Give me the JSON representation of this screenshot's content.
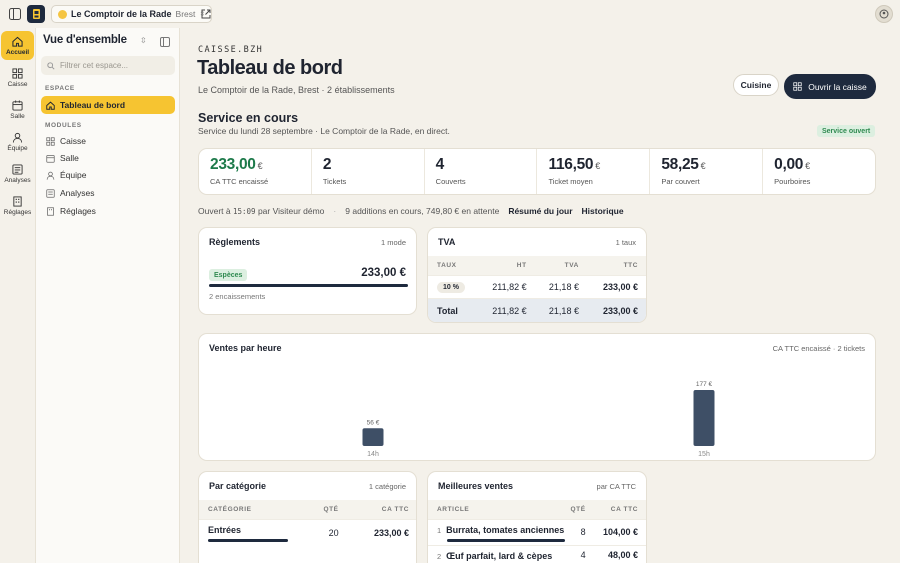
{
  "topbar": {
    "location_name": "Le Comptoir de la Rade",
    "location_city": "Brest"
  },
  "rail": {
    "items": [
      {
        "label": "Accueil",
        "icon": "home-icon",
        "active": true
      },
      {
        "label": "Caisse",
        "icon": "grid-icon"
      },
      {
        "label": "Salle",
        "icon": "calendar-icon"
      },
      {
        "label": "Équipe",
        "icon": "user-icon"
      },
      {
        "label": "Analyses",
        "icon": "chart-icon"
      },
      {
        "label": "Réglages",
        "icon": "building-icon"
      }
    ]
  },
  "sidebar": {
    "title": "Vue d'ensemble",
    "filter_placeholder": "Filtrer cet espace...",
    "section_space": "ESPACE",
    "dashboard_label": "Tableau de bord",
    "section_modules": "MODULES",
    "modules": [
      {
        "label": "Caisse",
        "icon": "grid-icon"
      },
      {
        "label": "Salle",
        "icon": "calendar-icon"
      },
      {
        "label": "Équipe",
        "icon": "user-icon"
      },
      {
        "label": "Analyses",
        "icon": "chart-icon"
      },
      {
        "label": "Réglages",
        "icon": "building-icon"
      }
    ]
  },
  "header": {
    "kicker": "CAISSE.BZH",
    "title": "Tableau de bord",
    "subtitle": "Le Comptoir de la Rade, Brest · 2 établissements",
    "btn_kitchen": "Cuisine",
    "btn_open_register": "Ouvrir la caisse"
  },
  "service": {
    "title": "Service en cours",
    "subtitle": "Service du lundi 28 septembre · Le Comptoir de la Rade, en direct.",
    "status_badge": "Service ouvert",
    "kpis": [
      {
        "value": "233,00",
        "unit": "€",
        "label": "CA TTC encaissé",
        "highlight": true
      },
      {
        "value": "2",
        "unit": "",
        "label": "Tickets"
      },
      {
        "value": "4",
        "unit": "",
        "label": "Couverts"
      },
      {
        "value": "116,50",
        "unit": "€",
        "label": "Ticket moyen"
      },
      {
        "value": "58,25",
        "unit": "€",
        "label": "Par couvert"
      },
      {
        "value": "0,00",
        "unit": "€",
        "label": "Pourboires"
      }
    ],
    "opened_prefix": "Ouvert à",
    "opened_time": "15:09",
    "opened_by": "par Visiteur démo",
    "pending": "9 additions en cours, 749,80 € en attente",
    "link_summary": "Résumé du jour",
    "link_history": "Historique"
  },
  "payments": {
    "title": "Règlements",
    "count": "1 mode",
    "method": "Espèces",
    "amount": "233,00 €",
    "share": 1.0,
    "footer": "2 encaissements"
  },
  "tva": {
    "title": "TVA",
    "count": "1 taux",
    "headers": [
      "TAUX",
      "HT",
      "TVA",
      "TTC"
    ],
    "rows": [
      {
        "rate": "10 %",
        "ht": "211,82 €",
        "tva": "21,18 €",
        "ttc": "233,00 €"
      }
    ],
    "total": {
      "label": "Total",
      "ht": "211,82 €",
      "tva": "21,18 €",
      "ttc": "233,00 €"
    }
  },
  "hourly": {
    "title": "Ventes par heure",
    "meta": "CA TTC encaissé · 2 tickets"
  },
  "chart_data": {
    "type": "bar",
    "title": "Ventes par heure",
    "categories": [
      "14h",
      "15h"
    ],
    "values": [
      56,
      177
    ],
    "value_labels": [
      "56 €",
      "177 €"
    ],
    "ylim": [
      0,
      177
    ],
    "grid": false
  },
  "categories": {
    "title": "Par catégorie",
    "count": "1 catégorie",
    "headers": [
      "CATÉGORIE",
      "QTÉ",
      "CA TTC"
    ],
    "rows": [
      {
        "name": "Entrées",
        "qty": "20",
        "amount": "233,00 €",
        "share": 1.0
      }
    ]
  },
  "best": {
    "title": "Meilleures ventes",
    "meta": "par CA TTC",
    "headers": [
      "ARTICLE",
      "QTÉ",
      "CA TTC"
    ],
    "rows": [
      {
        "rank": "1",
        "name": "Burrata, tomates anciennes",
        "qty": "8",
        "amount": "104,00 €",
        "share": 1.0
      },
      {
        "rank": "2",
        "name": "Œuf parfait, lard & cèpes",
        "qty": "4",
        "amount": "48,00 €",
        "share": 0.46
      }
    ]
  }
}
